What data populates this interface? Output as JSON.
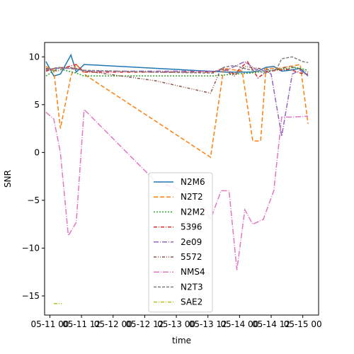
{
  "chart_data": {
    "type": "line",
    "title": "",
    "xlabel": "time",
    "ylabel": "SNR",
    "x_tick_labels": [
      "05-11 00",
      "05-11 12",
      "05-12 00",
      "05-12 12",
      "05-13 00",
      "05-13 12",
      "05-14 00",
      "05-14 12",
      "05-15 00"
    ],
    "x_ticks_hours": [
      0,
      12,
      24,
      36,
      48,
      60,
      72,
      84,
      96
    ],
    "xlim_hours": [
      -2,
      102
    ],
    "y_ticks": [
      -15,
      -10,
      -5,
      0,
      5,
      10
    ],
    "ylim": [
      -17,
      11.5
    ],
    "grid": false,
    "legend_position": "lower-center",
    "series": [
      {
        "name": "N2M6",
        "color": "#1f77b4",
        "dash": "",
        "points": [
          [
            -1.5,
            9.5
          ],
          [
            1.5,
            8.0
          ],
          [
            4,
            8.2
          ],
          [
            8,
            10.2
          ],
          [
            10,
            8.4
          ],
          [
            13,
            9.2
          ],
          [
            67,
            8.4
          ],
          [
            76,
            8.4
          ],
          [
            79,
            8.5
          ],
          [
            82,
            8.9
          ],
          [
            85,
            9.0
          ],
          [
            88,
            8.5
          ],
          [
            91,
            8.6
          ],
          [
            95,
            8.8
          ],
          [
            98,
            8.0
          ]
        ]
      },
      {
        "name": "N2T2",
        "color": "#ff7f0e",
        "dash": "6,3",
        "points": [
          [
            -1.5,
            9.0
          ],
          [
            1.5,
            8.5
          ],
          [
            4,
            2.5
          ],
          [
            8,
            8.0
          ],
          [
            10,
            9.2
          ],
          [
            14,
            8.0
          ],
          [
            61,
            -0.5
          ],
          [
            66,
            8.8
          ],
          [
            73,
            8.5
          ],
          [
            77,
            1.2
          ],
          [
            80,
            1.2
          ],
          [
            82,
            8.8
          ],
          [
            87,
            8.8
          ],
          [
            91,
            9.0
          ],
          [
            95,
            9.2
          ],
          [
            98,
            3.0
          ]
        ]
      },
      {
        "name": "N2M2",
        "color": "#2ca02c",
        "dash": "2,2",
        "points": [
          [
            -1.5,
            8.0
          ],
          [
            3,
            8.8
          ],
          [
            7,
            8.5
          ],
          [
            10,
            8.3
          ],
          [
            13,
            8.0
          ],
          [
            40,
            8.0
          ],
          [
            62,
            8.0
          ],
          [
            70,
            8.2
          ],
          [
            76,
            8.3
          ],
          [
            82,
            8.5
          ],
          [
            88,
            8.7
          ],
          [
            93,
            8.9
          ],
          [
            98,
            8.6
          ]
        ]
      },
      {
        "name": "5396",
        "color": "#d62728",
        "dash": "5,2,1,2",
        "points": [
          [
            -1.5,
            8.5
          ],
          [
            2,
            8.8
          ],
          [
            6,
            8.9
          ],
          [
            10,
            9.2
          ],
          [
            13,
            8.4
          ],
          [
            40,
            8.4
          ],
          [
            62,
            8.4
          ],
          [
            66,
            8.8
          ],
          [
            70,
            8.2
          ],
          [
            75,
            9.5
          ],
          [
            79,
            7.8
          ],
          [
            82,
            8.4
          ],
          [
            86,
            8.6
          ],
          [
            91,
            8.7
          ],
          [
            95,
            8.3
          ],
          [
            98,
            8.2
          ]
        ]
      },
      {
        "name": "2e09",
        "color": "#9467bd",
        "dash": "7,2,1,2",
        "points": [
          [
            -1.5,
            8.7
          ],
          [
            2,
            8.8
          ],
          [
            6,
            8.8
          ],
          [
            10,
            8.8
          ],
          [
            13,
            8.5
          ],
          [
            40,
            8.5
          ],
          [
            62,
            8.5
          ],
          [
            67,
            8.6
          ],
          [
            74,
            9.5
          ],
          [
            78,
            8.7
          ],
          [
            82,
            8.5
          ],
          [
            84,
            8.2
          ],
          [
            88,
            1.7
          ],
          [
            92,
            8.2
          ],
          [
            95,
            8.6
          ],
          [
            98,
            8.0
          ]
        ]
      },
      {
        "name": "5572",
        "color": "#8c564b",
        "dash": "4,2,1,2,1,2",
        "points": [
          [
            -1.5,
            8.8
          ],
          [
            3,
            8.5
          ],
          [
            6,
            8.9
          ],
          [
            10,
            8.8
          ],
          [
            14,
            8.5
          ],
          [
            40,
            7.5
          ],
          [
            61,
            6.2
          ],
          [
            65,
            8.8
          ],
          [
            70,
            8.0
          ],
          [
            74,
            9.0
          ],
          [
            79,
            8.8
          ],
          [
            84,
            8.6
          ],
          [
            88,
            8.8
          ],
          [
            91,
            9.0
          ],
          [
            95,
            8.7
          ],
          [
            98,
            8.4
          ]
        ]
      },
      {
        "name": "NMS4",
        "color": "#e377c2",
        "dash": "8,2,1,2",
        "points": [
          [
            -1.5,
            4.2
          ],
          [
            1.5,
            3.5
          ],
          [
            4,
            0.0
          ],
          [
            7,
            -8.7
          ],
          [
            10,
            -7.3
          ],
          [
            13,
            4.5
          ],
          [
            40,
            -3.0
          ],
          [
            56,
            -4.5
          ],
          [
            61,
            -7.0
          ],
          [
            65,
            -4.0
          ],
          [
            68,
            -4.0
          ],
          [
            71,
            -12.3
          ],
          [
            74,
            -6.0
          ],
          [
            77,
            -7.5
          ],
          [
            81,
            -7.0
          ],
          [
            85,
            -4.0
          ],
          [
            88,
            3.7
          ],
          [
            92,
            3.7
          ],
          [
            98,
            3.8
          ]
        ]
      },
      {
        "name": "N2T3",
        "color": "#7f7f7f",
        "dash": "4,2",
        "points": [
          [
            -1.5,
            8.6
          ],
          [
            3,
            8.9
          ],
          [
            7,
            8.8
          ],
          [
            10,
            8.7
          ],
          [
            13,
            8.6
          ],
          [
            40,
            8.4
          ],
          [
            62,
            8.3
          ],
          [
            66,
            8.9
          ],
          [
            70,
            9.1
          ],
          [
            75,
            8.7
          ],
          [
            79,
            8.5
          ],
          [
            82,
            8.3
          ],
          [
            86,
            8.7
          ],
          [
            88,
            9.8
          ],
          [
            92,
            10.0
          ],
          [
            96,
            9.5
          ],
          [
            98,
            9.4
          ]
        ]
      },
      {
        "name": "SAE2",
        "color": "#bcbd22",
        "dash": "5,2,1,2",
        "points": [
          [
            1.5,
            -15.8
          ],
          [
            4.5,
            -15.8
          ]
        ]
      }
    ]
  }
}
